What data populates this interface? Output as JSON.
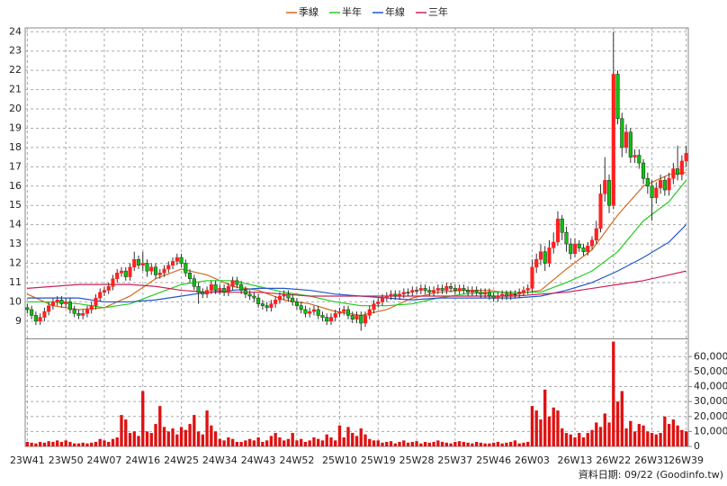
{
  "chart_data": {
    "type": "candlestick",
    "source": "資料日期: 09/22 (Goodinfo.tw)",
    "categories": [
      "23W41",
      null,
      null,
      null,
      null,
      null,
      null,
      null,
      null,
      "23W50",
      null,
      null,
      null,
      null,
      null,
      null,
      null,
      null,
      "24W07",
      null,
      null,
      null,
      null,
      null,
      null,
      null,
      null,
      "24W16",
      null,
      null,
      null,
      null,
      null,
      null,
      null,
      null,
      "24W25",
      null,
      null,
      null,
      null,
      null,
      null,
      null,
      null,
      "24W34",
      null,
      null,
      null,
      null,
      null,
      null,
      null,
      null,
      "24W43",
      null,
      null,
      null,
      null,
      null,
      null,
      null,
      null,
      "24W52",
      null,
      null,
      null,
      null,
      null,
      null,
      null,
      null,
      null,
      "25W10",
      null,
      null,
      null,
      null,
      null,
      null,
      null,
      null,
      "25W19",
      null,
      null,
      null,
      null,
      null,
      null,
      null,
      null,
      "25W28",
      null,
      null,
      null,
      null,
      null,
      null,
      null,
      null,
      "25W37",
      null,
      null,
      null,
      null,
      null,
      null,
      null,
      null,
      "25W46",
      null,
      null,
      null,
      null,
      null,
      null,
      null,
      null,
      "26W03",
      null,
      null,
      null,
      null,
      null,
      null,
      null,
      null,
      null,
      "26W13",
      null,
      null,
      null,
      null,
      null,
      null,
      null,
      null,
      "26W22",
      null,
      null,
      null,
      null,
      null,
      null,
      null,
      null,
      "26W31",
      null,
      null,
      null,
      null,
      null,
      null,
      null,
      "26W39"
    ],
    "open": [
      9.7,
      9.6,
      9.3,
      9.0,
      9.2,
      9.5,
      9.8,
      10.0,
      10.1,
      9.9,
      10.0,
      9.6,
      9.4,
      9.3,
      9.4,
      9.6,
      9.8,
      10.2,
      10.5,
      10.6,
      10.8,
      11.2,
      11.5,
      11.6,
      11.3,
      11.8,
      12.2,
      11.9,
      12.0,
      11.6,
      11.8,
      11.4,
      11.5,
      11.7,
      11.9,
      12.1,
      12.3,
      12.0,
      11.5,
      11.2,
      10.8,
      10.5,
      10.4,
      10.6,
      10.9,
      10.6,
      10.7,
      10.5,
      10.8,
      11.1,
      10.9,
      10.6,
      10.4,
      10.3,
      10.2,
      9.9,
      9.8,
      9.7,
      9.9,
      10.1,
      10.3,
      10.4,
      10.2,
      10.0,
      9.8,
      9.6,
      9.4,
      9.5,
      9.6,
      9.3,
      9.2,
      9.0,
      9.2,
      9.4,
      9.5,
      9.6,
      9.3,
      9.1,
      9.3,
      8.9,
      9.3,
      9.6,
      9.9,
      10.0,
      10.2,
      10.3,
      10.4,
      10.3,
      10.4,
      10.5,
      10.5,
      10.6,
      10.6,
      10.7,
      10.6,
      10.5,
      10.6,
      10.7,
      10.6,
      10.8,
      10.7,
      10.6,
      10.7,
      10.6,
      10.5,
      10.6,
      10.5,
      10.4,
      10.5,
      10.3,
      10.2,
      10.3,
      10.4,
      10.3,
      10.4,
      10.4,
      10.5,
      10.6,
      10.7,
      11.8,
      12.2,
      12.6,
      12.0,
      12.8,
      13.1,
      14.3,
      13.6,
      13.0,
      12.5,
      13.0,
      12.8,
      12.6,
      12.9,
      13.2,
      13.8,
      15.6,
      16.3,
      15.0,
      21.8,
      19.5,
      18.0,
      18.8,
      17.5,
      17.6,
      17.2,
      16.4,
      16.0,
      15.4,
      15.9,
      16.3,
      15.8,
      16.4,
      16.9,
      16.6,
      17.3
    ],
    "high": [
      9.9,
      9.8,
      9.5,
      9.4,
      9.7,
      10.0,
      10.2,
      10.3,
      10.3,
      10.2,
      10.2,
      9.8,
      9.6,
      9.6,
      9.8,
      10.0,
      10.4,
      10.7,
      10.8,
      11.0,
      11.4,
      11.7,
      11.8,
      11.8,
      12.0,
      12.6,
      12.4,
      12.6,
      12.2,
      12.0,
      12.0,
      11.7,
      11.9,
      12.1,
      12.3,
      12.5,
      12.5,
      12.2,
      11.7,
      11.4,
      11.0,
      10.7,
      10.8,
      11.1,
      11.1,
      10.9,
      10.9,
      11.0,
      11.3,
      11.3,
      11.1,
      10.8,
      10.6,
      10.5,
      10.4,
      10.1,
      10.0,
      10.1,
      10.3,
      10.5,
      10.6,
      10.6,
      10.4,
      10.2,
      10.0,
      9.8,
      9.7,
      9.8,
      9.8,
      9.5,
      9.4,
      9.4,
      9.6,
      9.7,
      9.8,
      9.8,
      9.5,
      9.5,
      9.5,
      9.5,
      9.8,
      10.1,
      10.2,
      10.4,
      10.5,
      10.6,
      10.6,
      10.6,
      10.7,
      10.7,
      10.8,
      10.8,
      10.9,
      10.9,
      10.8,
      10.8,
      10.9,
      10.9,
      11.0,
      11.0,
      10.9,
      10.9,
      10.9,
      10.8,
      10.8,
      10.8,
      10.7,
      10.7,
      10.7,
      10.5,
      10.5,
      10.6,
      10.6,
      10.6,
      10.6,
      10.7,
      10.8,
      10.9,
      12.2,
      12.5,
      13.0,
      12.9,
      13.2,
      13.6,
      14.7,
      14.5,
      13.9,
      13.3,
      13.3,
      13.2,
      13.0,
      13.1,
      13.4,
      14.2,
      16.1,
      17.5,
      16.6,
      24.0,
      22.0,
      19.8,
      19.2,
      19.0,
      17.9,
      17.9,
      17.4,
      16.7,
      16.3,
      16.2,
      16.6,
      16.5,
      16.7,
      17.2,
      18.1,
      17.6,
      18.1
    ],
    "low": [
      9.4,
      9.1,
      8.8,
      8.8,
      9.0,
      9.3,
      9.6,
      9.8,
      9.7,
      9.7,
      9.4,
      9.2,
      9.1,
      9.1,
      9.2,
      9.4,
      9.6,
      10.0,
      10.3,
      10.4,
      10.6,
      11.0,
      11.3,
      11.1,
      11.1,
      11.6,
      11.7,
      11.6,
      11.3,
      11.4,
      11.2,
      11.2,
      11.3,
      11.5,
      11.7,
      11.9,
      11.8,
      11.3,
      11.0,
      10.6,
      9.9,
      10.2,
      10.2,
      10.4,
      10.4,
      10.4,
      10.3,
      10.3,
      10.6,
      10.7,
      10.4,
      10.2,
      10.1,
      10.0,
      9.7,
      9.6,
      9.5,
      9.5,
      9.7,
      9.9,
      10.1,
      10.0,
      9.8,
      9.6,
      9.4,
      9.2,
      9.2,
      9.3,
      9.1,
      9.0,
      8.8,
      8.8,
      9.0,
      9.2,
      9.3,
      9.1,
      8.9,
      8.9,
      8.5,
      8.7,
      9.1,
      9.4,
      9.7,
      9.8,
      10.0,
      10.1,
      10.1,
      10.1,
      10.2,
      10.3,
      10.3,
      10.4,
      10.4,
      10.4,
      10.3,
      10.3,
      10.4,
      10.4,
      10.4,
      10.5,
      10.4,
      10.4,
      10.4,
      10.3,
      10.3,
      10.3,
      10.2,
      10.2,
      10.1,
      10.0,
      10.0,
      10.1,
      10.1,
      10.1,
      10.2,
      10.2,
      10.3,
      10.4,
      10.5,
      11.5,
      11.9,
      11.6,
      11.8,
      12.5,
      12.9,
      13.2,
      12.6,
      12.2,
      12.3,
      12.6,
      12.4,
      12.4,
      12.7,
      13.0,
      13.6,
      15.2,
      14.6,
      14.8,
      19.2,
      17.5,
      17.7,
      17.2,
      17.2,
      16.9,
      16.1,
      15.6,
      14.2,
      15.1,
      15.6,
      15.5,
      15.5,
      16.1,
      16.3,
      16.3,
      17.0
    ],
    "close": [
      9.6,
      9.3,
      9.0,
      9.2,
      9.5,
      9.8,
      10.0,
      10.1,
      9.9,
      10.0,
      9.6,
      9.4,
      9.3,
      9.4,
      9.6,
      9.8,
      10.2,
      10.5,
      10.6,
      10.8,
      11.2,
      11.5,
      11.6,
      11.3,
      11.8,
      12.2,
      11.9,
      12.0,
      11.6,
      11.8,
      11.4,
      11.5,
      11.7,
      11.9,
      12.1,
      12.3,
      12.0,
      11.5,
      11.2,
      10.8,
      10.5,
      10.4,
      10.6,
      10.9,
      10.6,
      10.7,
      10.5,
      10.8,
      11.1,
      10.9,
      10.6,
      10.4,
      10.3,
      10.2,
      9.9,
      9.8,
      9.7,
      9.9,
      10.1,
      10.3,
      10.4,
      10.2,
      10.0,
      9.8,
      9.6,
      9.4,
      9.5,
      9.6,
      9.3,
      9.2,
      9.0,
      9.2,
      9.4,
      9.5,
      9.6,
      9.3,
      9.1,
      9.3,
      8.9,
      9.3,
      9.6,
      9.9,
      10.0,
      10.2,
      10.3,
      10.4,
      10.3,
      10.4,
      10.5,
      10.5,
      10.6,
      10.6,
      10.7,
      10.6,
      10.5,
      10.6,
      10.7,
      10.6,
      10.8,
      10.7,
      10.6,
      10.7,
      10.6,
      10.5,
      10.6,
      10.5,
      10.4,
      10.5,
      10.3,
      10.2,
      10.3,
      10.4,
      10.3,
      10.4,
      10.4,
      10.5,
      10.6,
      10.7,
      11.8,
      12.2,
      12.6,
      12.0,
      12.8,
      13.1,
      14.3,
      13.6,
      13.0,
      12.5,
      13.0,
      12.8,
      12.6,
      12.9,
      13.2,
      13.8,
      15.6,
      16.3,
      15.0,
      21.8,
      19.5,
      18.0,
      18.8,
      17.5,
      17.6,
      17.2,
      16.4,
      16.0,
      15.4,
      15.9,
      16.3,
      15.8,
      16.4,
      16.9,
      16.6,
      17.3,
      17.7
    ],
    "up_color": "#ff2020",
    "down_color": "#10c010",
    "volume": [
      3000,
      2500,
      2000,
      3000,
      2500,
      3500,
      3000,
      4000,
      3000,
      4000,
      3000,
      2000,
      2000,
      2500,
      2000,
      2500,
      3000,
      5000,
      4000,
      3000,
      5000,
      6000,
      21000,
      18000,
      9000,
      10000,
      7000,
      37000,
      10000,
      9000,
      15000,
      27000,
      13000,
      10000,
      12000,
      8000,
      13000,
      11000,
      15000,
      21000,
      10000,
      8000,
      24000,
      14000,
      10000,
      5000,
      4000,
      6000,
      5000,
      3000,
      3000,
      4000,
      5000,
      4000,
      6000,
      3000,
      4000,
      7000,
      9000,
      6000,
      4000,
      5000,
      9000,
      4000,
      5000,
      3000,
      4000,
      6000,
      5000,
      4000,
      8000,
      6000,
      4000,
      14000,
      6000,
      13000,
      9000,
      7000,
      12000,
      8000,
      5000,
      4000,
      4000,
      2500,
      3000,
      3500,
      2000,
      3000,
      4000,
      2500,
      3000,
      3500,
      2000,
      3000,
      2500,
      3000,
      4000,
      3000,
      2500,
      2000,
      3000,
      3500,
      3000,
      2500,
      2000,
      3000,
      2500,
      2000,
      2000,
      2500,
      3000,
      2000,
      2500,
      3000,
      4000,
      2000,
      2500,
      3000,
      27000,
      24000,
      18000,
      38000,
      20000,
      26000,
      24000,
      12000,
      9000,
      8000,
      6000,
      9000,
      6000,
      9000,
      11000,
      16000,
      13000,
      22000,
      16000,
      70000,
      30000,
      37000,
      12000,
      17000,
      10000,
      15000,
      14000,
      10000,
      9000,
      8000,
      9000,
      20000,
      15000,
      18000,
      14000,
      11000,
      10000
    ],
    "volume_color": "#e01010",
    "series": [
      {
        "name": "季線",
        "color": "#d2691e",
        "x": [
          0,
          6,
          12,
          18,
          24,
          30,
          36,
          42,
          48,
          54,
          60,
          66,
          72,
          78,
          84,
          90,
          96,
          102,
          108,
          114,
          120,
          126,
          132,
          138,
          144,
          150,
          154
        ],
        "values": [
          10.4,
          9.8,
          9.6,
          9.7,
          10.3,
          11.2,
          11.7,
          11.4,
          10.8,
          10.6,
          10.1,
          9.9,
          9.5,
          9.3,
          9.6,
          10.2,
          10.5,
          10.6,
          10.6,
          10.4,
          10.6,
          11.7,
          12.7,
          14.5,
          16.0,
          16.6,
          16.7
        ]
      },
      {
        "name": "半年",
        "color": "#22cc22",
        "x": [
          0,
          6,
          12,
          18,
          24,
          30,
          36,
          42,
          48,
          54,
          60,
          66,
          72,
          78,
          84,
          90,
          96,
          102,
          108,
          114,
          120,
          126,
          132,
          138,
          144,
          150,
          154
        ],
        "values": [
          10.0,
          10.0,
          9.9,
          9.7,
          9.9,
          10.4,
          10.9,
          11.1,
          11.1,
          10.8,
          10.5,
          10.3,
          10.0,
          9.8,
          9.8,
          9.9,
          10.2,
          10.4,
          10.5,
          10.5,
          10.5,
          11.0,
          11.6,
          12.6,
          14.2,
          15.2,
          16.3
        ]
      },
      {
        "name": "年線",
        "color": "#2255cc",
        "x": [
          0,
          6,
          12,
          18,
          24,
          30,
          36,
          42,
          48,
          54,
          60,
          66,
          72,
          78,
          84,
          90,
          96,
          102,
          108,
          114,
          120,
          126,
          132,
          138,
          144,
          150,
          154
        ],
        "values": [
          10.2,
          10.2,
          10.2,
          10.0,
          10.0,
          10.1,
          10.3,
          10.5,
          10.6,
          10.7,
          10.7,
          10.6,
          10.4,
          10.3,
          10.2,
          10.1,
          10.2,
          10.2,
          10.2,
          10.2,
          10.3,
          10.6,
          11.0,
          11.6,
          12.3,
          13.1,
          14.0
        ]
      },
      {
        "name": "三年",
        "color": "#cc2255",
        "x": [
          0,
          6,
          12,
          18,
          24,
          30,
          36,
          42,
          48,
          54,
          60,
          66,
          72,
          78,
          84,
          90,
          96,
          102,
          108,
          114,
          120,
          126,
          132,
          138,
          144,
          150,
          154
        ],
        "values": [
          10.7,
          10.8,
          10.9,
          10.9,
          10.9,
          10.8,
          10.6,
          10.5,
          10.5,
          10.5,
          10.4,
          10.3,
          10.3,
          10.3,
          10.3,
          10.3,
          10.3,
          10.3,
          10.3,
          10.3,
          10.4,
          10.5,
          10.7,
          10.9,
          11.1,
          11.4,
          11.6
        ]
      }
    ],
    "ylim": [
      8.2,
      24.2
    ],
    "yticks": [
      9,
      10,
      11,
      12,
      13,
      14,
      15,
      16,
      17,
      18,
      19,
      20,
      21,
      22,
      23,
      24
    ],
    "y2lim": [
      0,
      71000
    ],
    "y2ticks": [
      0,
      {
        "value": 10000,
        "label": "10,000"
      },
      {
        "value": 20000,
        "label": "20,000"
      },
      {
        "value": 30000,
        "label": "30,000"
      },
      {
        "value": 40000,
        "label": "40,000"
      },
      {
        "value": 50000,
        "label": "50,000"
      },
      {
        "value": 60000,
        "label": "60,000"
      }
    ],
    "grid": true
  }
}
